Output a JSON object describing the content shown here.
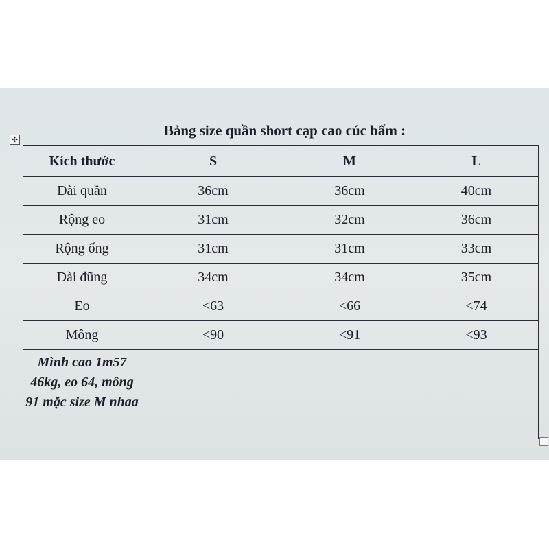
{
  "document": {
    "title": "Bảng size quần short cạp cao cúc bấm :",
    "table": {
      "headers": [
        "Kích thước",
        "S",
        "M",
        "L"
      ],
      "rows": [
        [
          "Dài quần",
          "36cm",
          "36cm",
          "40cm"
        ],
        [
          "Rộng eo",
          "31cm",
          "32cm",
          "36cm"
        ],
        [
          "Rộng ống",
          "31cm",
          "31cm",
          "33cm"
        ],
        [
          "Dài đũng",
          "34cm",
          "34cm",
          "35cm"
        ],
        [
          "Eo",
          "<63",
          "<66",
          "<74"
        ],
        [
          "Mông",
          "<90",
          "<91",
          "<93"
        ]
      ],
      "note": "Mình cao 1m57 46kg, eo 64, mông 91 mặc size M nhaa"
    },
    "icons": {
      "table_move": "move-arrows-icon",
      "table_resize": "resize-handle-icon"
    }
  }
}
